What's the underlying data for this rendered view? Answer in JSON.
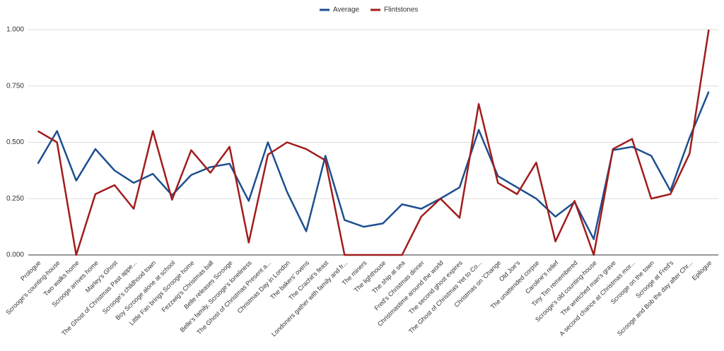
{
  "chart_data": {
    "type": "line",
    "categories": [
      "Prologue",
      "Scrooge's counting-house",
      "Two walks home",
      "Scrooge arrives home",
      "Marley's Ghost",
      "The Ghost of Christmas Past appe...",
      "Scrooge's childhood town",
      "Boy Scrooge alone at school",
      "Little Fan brings Scrooge home",
      "Fezzwig's Christmas ball",
      "Belle releases Scrooge",
      "Belle's family, Scrooge's loneliness",
      "The Ghost of Christmas Present a...",
      "Christmas Day in London",
      "The bakers' ovens",
      "The Crachit's feast",
      "Londoners gather with family and fr...",
      "The miners",
      "The lighthouse",
      "The ship at sea",
      "Fred's Christmas dinner",
      "Christmastime around the world",
      "The second ghost expires",
      "The Ghost of Christmas Yet to Co...",
      "Christmas on 'Change",
      "Old Joe's",
      "The unattended corpse",
      "Caroline's relief",
      "Tiny Tim remembered",
      "Scrooge's old counting-house",
      "The wretched man's grave",
      "A second chance at Christmas mor...",
      "Scrooge on the town",
      "Scrooge at Fred's",
      "Scrooge and Bob the day after Chr...",
      "Epilogue"
    ],
    "series": [
      {
        "name": "Average",
        "color": "#1c4f8f",
        "values": [
          0.405,
          0.55,
          0.33,
          0.47,
          0.375,
          0.32,
          0.36,
          0.265,
          0.355,
          0.39,
          0.405,
          0.24,
          0.5,
          0.28,
          0.105,
          0.44,
          0.155,
          0.125,
          0.14,
          0.225,
          0.205,
          0.25,
          0.3,
          0.555,
          0.35,
          0.3,
          0.25,
          0.17,
          0.235,
          0.07,
          0.465,
          0.48,
          0.44,
          0.285,
          0.52,
          0.725
        ]
      },
      {
        "name": "Flintstones",
        "color": "#a01c1c",
        "values": [
          0.55,
          0.5,
          0,
          0.27,
          0.31,
          0.205,
          0.55,
          0.245,
          0.465,
          0.365,
          0.48,
          0.055,
          0.445,
          0.5,
          0.47,
          0.42,
          0,
          0,
          0,
          0,
          0.17,
          0.25,
          0.165,
          0.67,
          0.32,
          0.27,
          0.41,
          0.06,
          0.24,
          0,
          0.47,
          0.515,
          0.25,
          0.27,
          0.45,
          1.0
        ]
      }
    ],
    "ylim": [
      0,
      1
    ],
    "yticks": [
      {
        "value": 0,
        "label": "0.000"
      },
      {
        "value": 0.25,
        "label": "0.250"
      },
      {
        "value": 0.5,
        "label": "0.500"
      },
      {
        "value": 0.75,
        "label": "0.750"
      },
      {
        "value": 1,
        "label": "1.000"
      }
    ],
    "grid": true,
    "legend": "top"
  }
}
